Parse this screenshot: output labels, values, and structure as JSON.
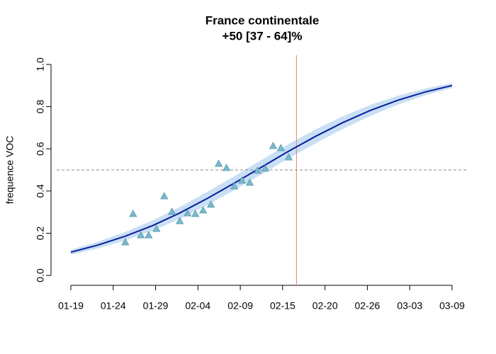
{
  "chart_data": {
    "type": "scatter",
    "title": "France continentale",
    "subtitle": "+50 [37 - 64]%",
    "ylabel": "frequence VOC",
    "xlim": [
      0,
      49
    ],
    "ylim": [
      0,
      1
    ],
    "xticks": [
      {
        "value": 0,
        "label": "01-19"
      },
      {
        "value": 5.44,
        "label": "01-24"
      },
      {
        "value": 10.89,
        "label": "01-29"
      },
      {
        "value": 16.33,
        "label": "02-04"
      },
      {
        "value": 21.78,
        "label": "02-09"
      },
      {
        "value": 27.22,
        "label": "02-15"
      },
      {
        "value": 32.67,
        "label": "02-20"
      },
      {
        "value": 38.11,
        "label": "02-26"
      },
      {
        "value": 43.56,
        "label": "03-03"
      },
      {
        "value": 49,
        "label": "03-09"
      }
    ],
    "yticks": [
      {
        "value": 0,
        "label": "0.0"
      },
      0.2,
      0.4,
      0.6,
      0.8,
      {
        "value": 1,
        "label": "1.0"
      }
    ],
    "points": {
      "color": "#7ab8cc",
      "x": [
        7,
        8,
        9,
        10,
        11,
        12,
        13,
        14,
        15,
        16,
        17,
        18,
        19,
        20,
        21,
        22,
        23,
        24,
        25,
        26,
        27,
        28
      ],
      "values": [
        0.158,
        0.292,
        0.191,
        0.191,
        0.221,
        0.376,
        0.302,
        0.258,
        0.295,
        0.292,
        0.309,
        0.336,
        0.53,
        0.51,
        0.423,
        0.45,
        0.44,
        0.497,
        0.507,
        0.614,
        0.604,
        0.56
      ]
    },
    "fit": {
      "color": "#0a1f9c",
      "band_color": "#c9dff5",
      "x": [
        0,
        3.5,
        7,
        10.5,
        14,
        17.5,
        21,
        24.5,
        28,
        31.5,
        35,
        38.5,
        42,
        45.5,
        49
      ],
      "values": [
        0.11,
        0.144,
        0.186,
        0.236,
        0.296,
        0.364,
        0.437,
        0.513,
        0.589,
        0.66,
        0.725,
        0.782,
        0.83,
        0.869,
        0.9
      ],
      "lower": [
        0.098,
        0.128,
        0.166,
        0.212,
        0.268,
        0.333,
        0.404,
        0.479,
        0.555,
        0.627,
        0.695,
        0.756,
        0.809,
        0.853,
        0.888
      ],
      "upper": [
        0.122,
        0.16,
        0.206,
        0.26,
        0.324,
        0.395,
        0.47,
        0.547,
        0.623,
        0.693,
        0.755,
        0.808,
        0.851,
        0.885,
        0.912
      ]
    },
    "hline": 0.5,
    "vline": 29,
    "vline_color": "#e08870"
  }
}
